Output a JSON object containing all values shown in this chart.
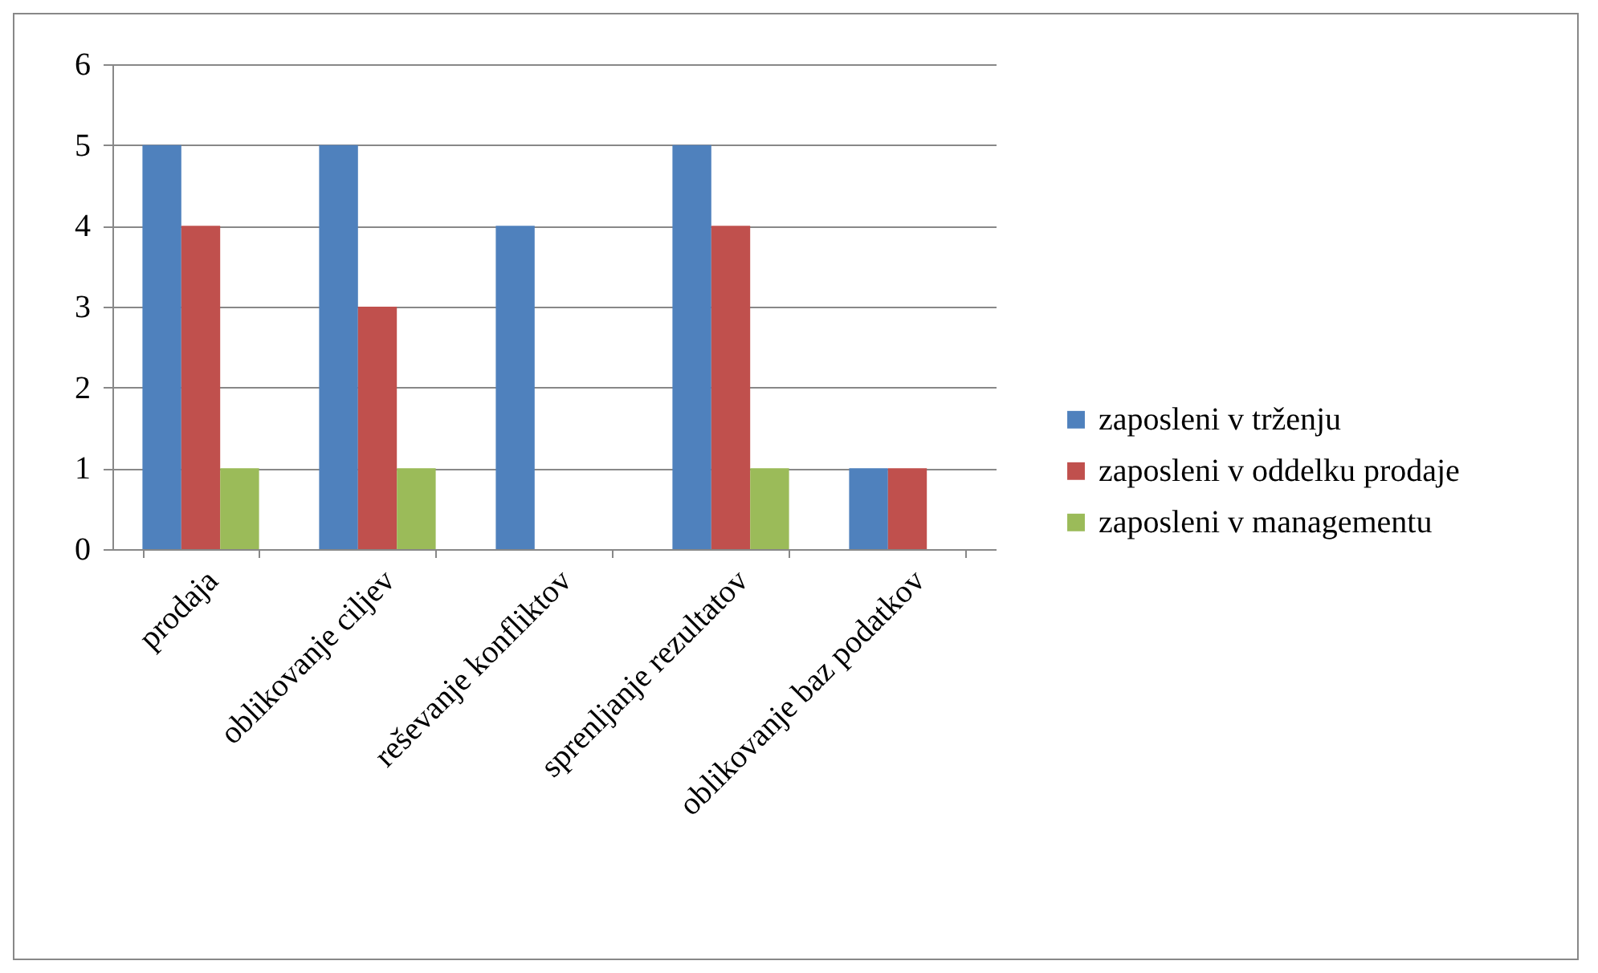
{
  "chart_data": {
    "type": "bar",
    "categories": [
      "prodaja",
      "oblikovanje ciljev",
      "reševanje konfliktov",
      "sprenljanje rezultatov",
      "oblikovanje baz podatkov"
    ],
    "series": [
      {
        "name": "zaposleni v trženju",
        "color": "#4f81bd",
        "values": [
          5,
          5,
          4,
          5,
          1
        ]
      },
      {
        "name": "zaposleni v oddelku prodaje",
        "color": "#c0504d",
        "values": [
          4,
          3,
          0,
          4,
          1
        ]
      },
      {
        "name": "zaposleni v managementu",
        "color": "#9bbb59",
        "values": [
          1,
          1,
          0,
          1,
          0
        ]
      }
    ],
    "ylim": [
      0,
      6
    ],
    "yticks": [
      0,
      1,
      2,
      3,
      4,
      5,
      6
    ],
    "grid": "y",
    "legend": "right"
  }
}
